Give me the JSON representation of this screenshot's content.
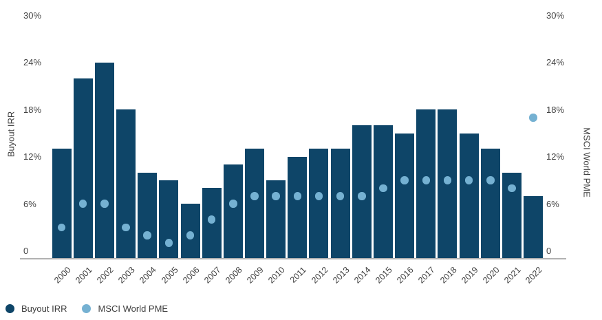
{
  "chart_data": {
    "type": "bar",
    "title": "",
    "categories": [
      "2000",
      "2001",
      "2002",
      "2003",
      "2004",
      "2005",
      "2006",
      "2007",
      "2008",
      "2009",
      "2010",
      "2011",
      "2012",
      "2013",
      "2014",
      "2015",
      "2016",
      "2017",
      "2018",
      "2019",
      "2020",
      "2021",
      "2022"
    ],
    "series": [
      {
        "name": "Buyout IRR",
        "type": "bar",
        "color": "#0e4568",
        "values": [
          14,
          23,
          25,
          19,
          11,
          10,
          7,
          9,
          12,
          14,
          10,
          13,
          14,
          14,
          17,
          17,
          16,
          19,
          19,
          16,
          14,
          11,
          8
        ]
      },
      {
        "name": "MSCI World PME",
        "type": "scatter",
        "color": "#75b1d2",
        "values": [
          4,
          7,
          7,
          4,
          3,
          2,
          3,
          5,
          7,
          8,
          8,
          8,
          8,
          8,
          8,
          9,
          10,
          10,
          10,
          10,
          10,
          9,
          18
        ]
      }
    ],
    "ylabel_left": "Buyout IRR",
    "ylabel_right": "MSCI World PME",
    "xlabel": "",
    "ylim": [
      0,
      30
    ],
    "y_ticks": [
      0,
      6,
      12,
      18,
      24,
      30
    ],
    "y_tick_labels": [
      "0",
      "6%",
      "12%",
      "18%",
      "24%",
      "30%"
    ],
    "grid": false,
    "legend_position": "bottom-left",
    "x_tick_rotation_deg": 45
  },
  "legend": {
    "items": [
      {
        "label": "Buyout IRR",
        "color": "#0e4568"
      },
      {
        "label": "MSCI World PME",
        "color": "#75b1d2"
      }
    ]
  },
  "colors": {
    "background": "#ffffff",
    "axis_line": "#b1b1b1",
    "tick_text": "#434343",
    "bar": "#0e4568",
    "dot": "#75b1d2"
  }
}
